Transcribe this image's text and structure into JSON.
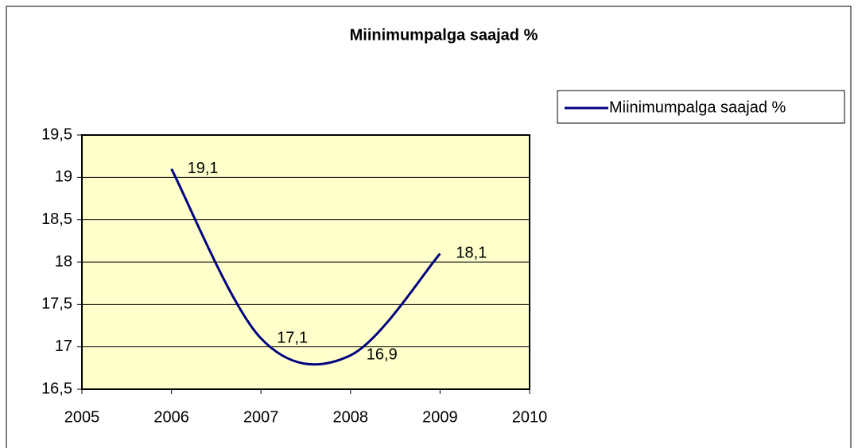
{
  "chart_data": {
    "type": "line",
    "title": "Miinimumpalga saajad %",
    "x": [
      2006,
      2007,
      2008,
      2009
    ],
    "series": [
      {
        "name": "Miinimumpalga saajad %",
        "color": "#000080",
        "values": [
          19.1,
          17.1,
          16.9,
          18.1
        ],
        "value_labels": [
          "19,1",
          "17,1",
          "16,9",
          "18,1"
        ]
      }
    ],
    "xlim": [
      2005,
      2010
    ],
    "xticks": [
      2005,
      2006,
      2007,
      2008,
      2009,
      2010
    ],
    "ylim": [
      16.5,
      19.5
    ],
    "yticks": [
      {
        "value": 16.5,
        "label": "16,5"
      },
      17,
      {
        "value": 17.5,
        "label": "17,5"
      },
      18,
      {
        "value": 18.5,
        "label": "18,5"
      },
      19,
      {
        "value": 19.5,
        "label": "19,5"
      }
    ],
    "grid": true,
    "smooth": true,
    "plot_background": "#ffffcc",
    "legend": "right"
  }
}
